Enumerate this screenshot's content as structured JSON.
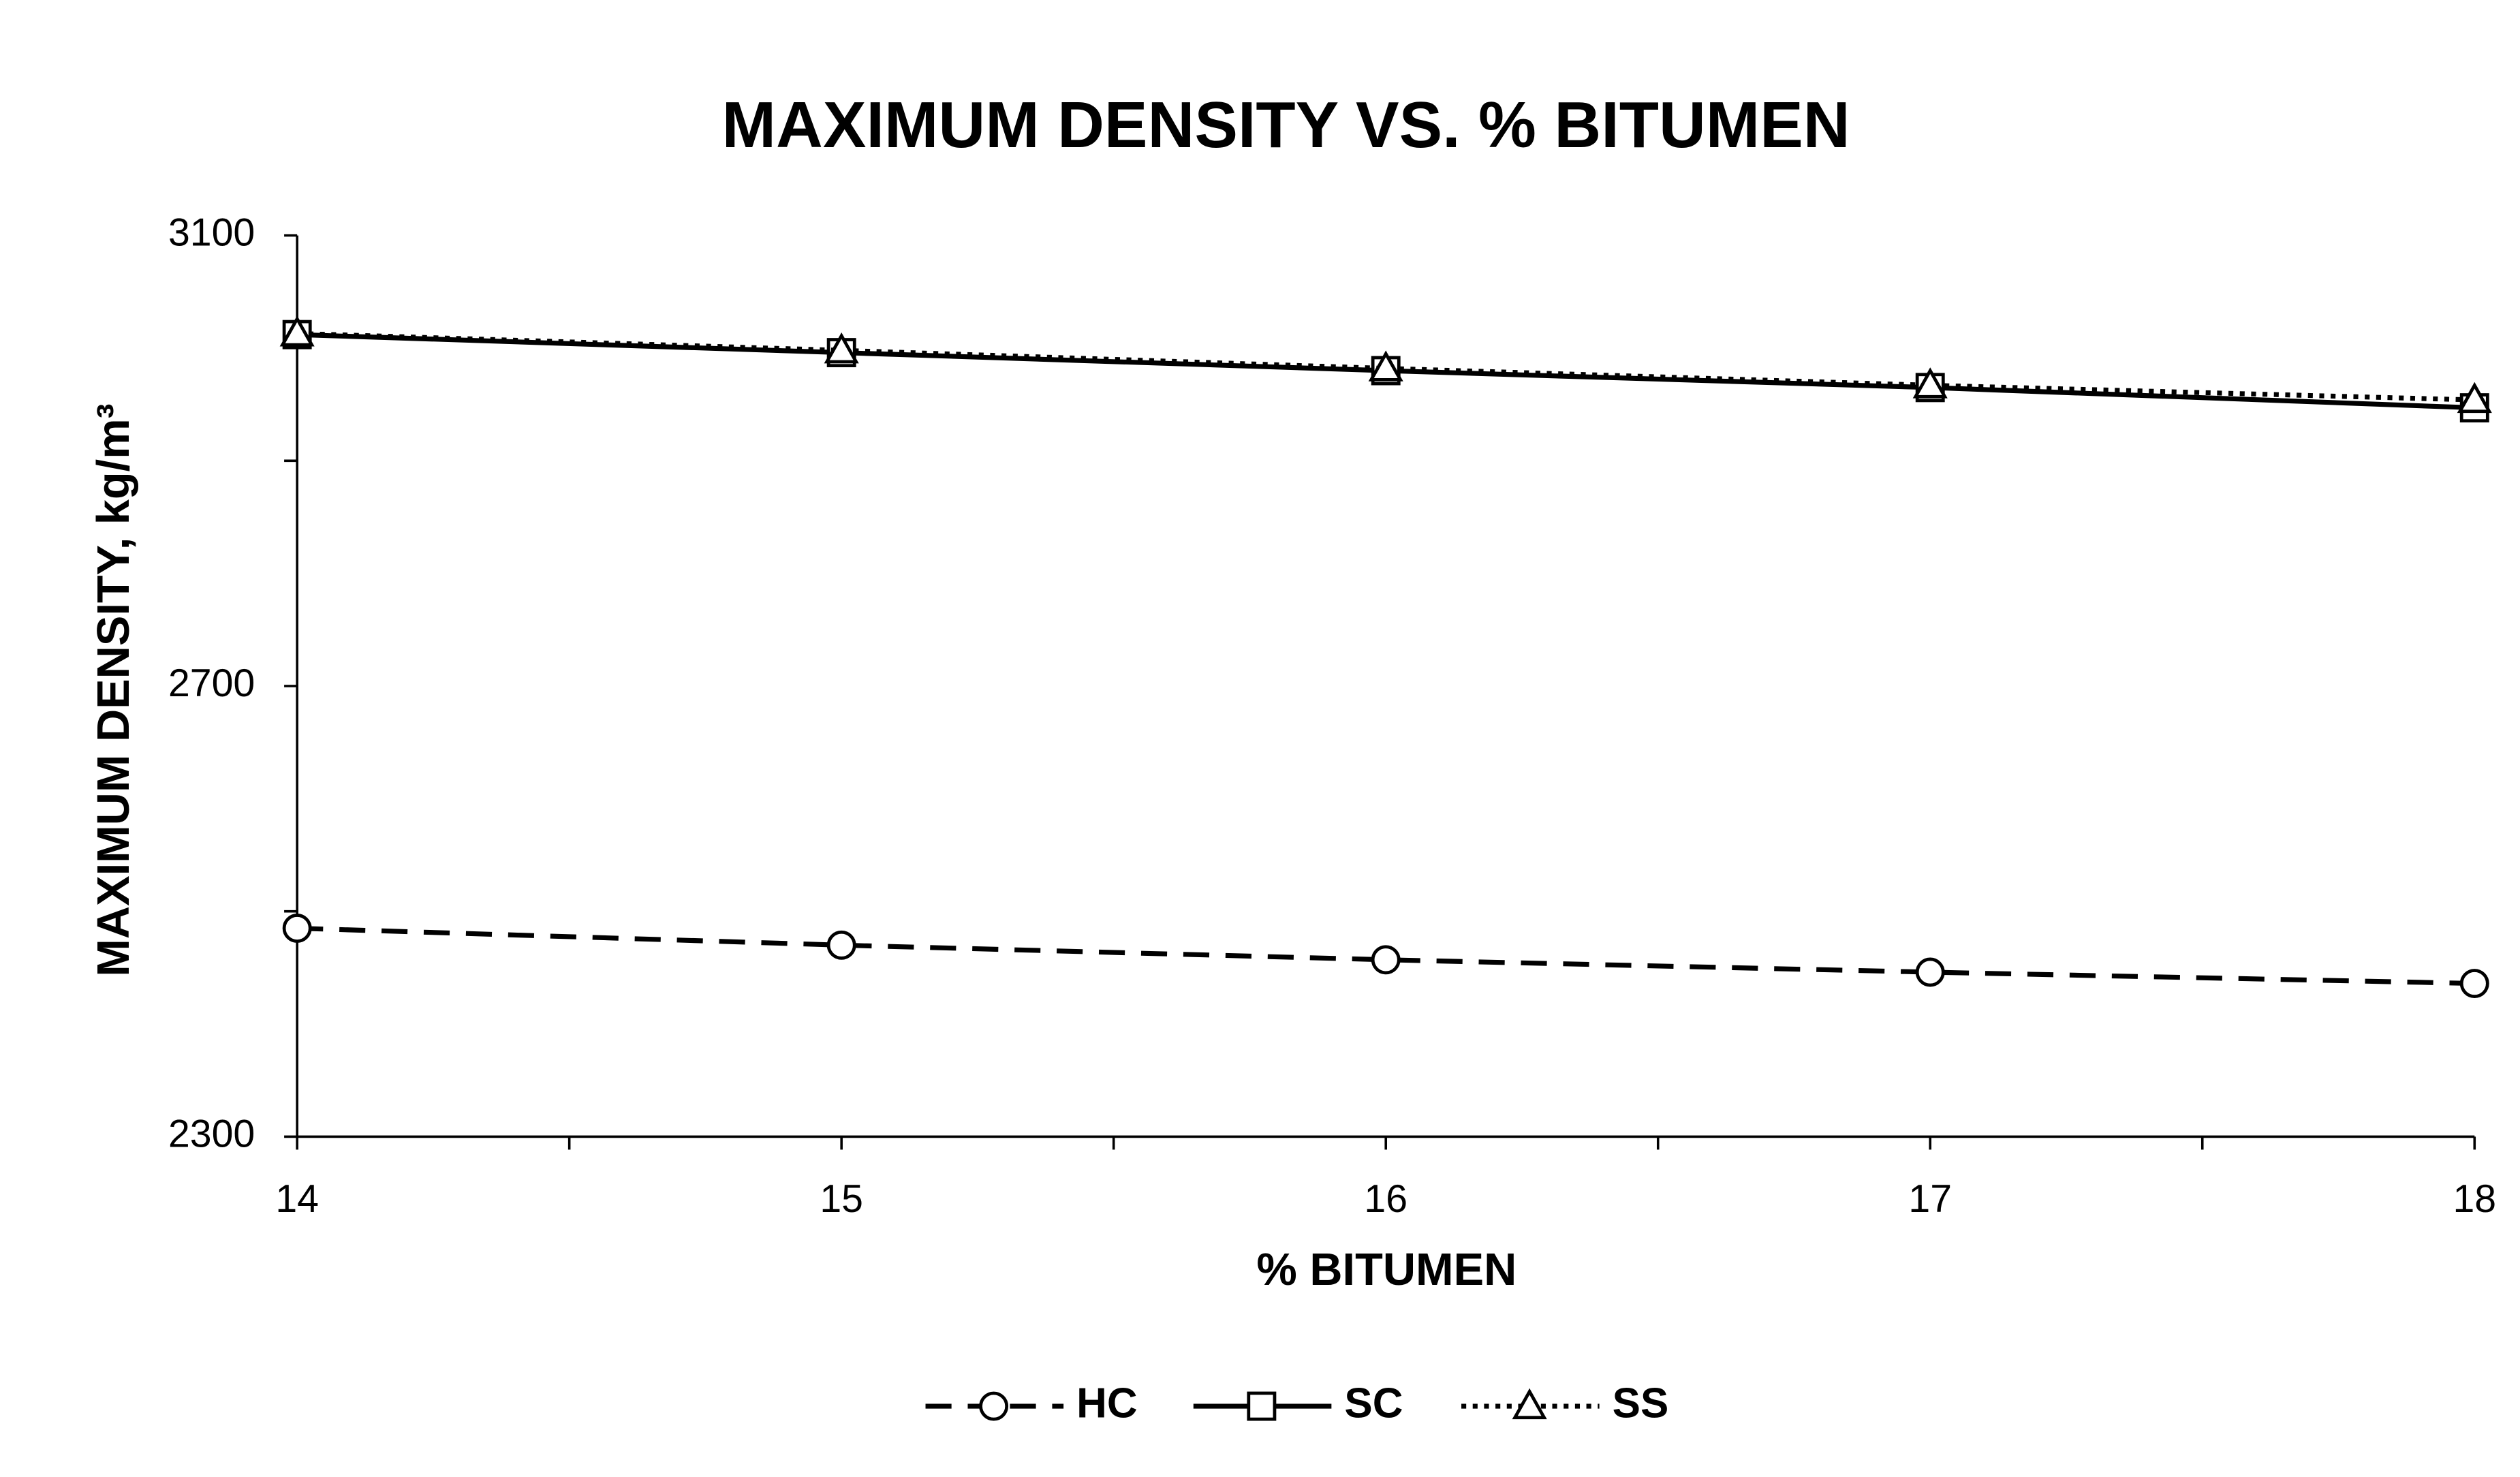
{
  "chart_data": {
    "type": "line",
    "title": "MAXIMUM DENSITY VS. % BITUMEN",
    "x_label": "% BITUMEN",
    "y_label": "MAXIMUM DENSITY, kg/m³",
    "x": [
      14,
      15,
      16,
      17,
      18
    ],
    "series": [
      {
        "name": "HC",
        "color": "#000000",
        "style": "dashed",
        "marker": "circle",
        "values": [
          2485,
          2470,
          2457,
          2446,
          2436
        ]
      },
      {
        "name": "SC",
        "color": "#000000",
        "style": "solid",
        "marker": "square",
        "values": [
          3012,
          2996,
          2980,
          2965,
          2947
        ]
      },
      {
        "name": "SS",
        "color": "#000000",
        "style": "dotted",
        "marker": "triangle",
        "values": [
          3013,
          2998,
          2982,
          2967,
          2954
        ]
      }
    ],
    "xlim": [
      14,
      18
    ],
    "xticks": [
      14,
      15,
      16,
      17,
      18
    ],
    "minor_xticks": [
      14.5,
      15.5,
      16.5,
      17.5
    ],
    "ylim": [
      2300,
      3100
    ],
    "yticks": [
      2300,
      2700,
      3100
    ],
    "minor_yticks": [
      2500,
      2900
    ],
    "legend": "bottom"
  }
}
